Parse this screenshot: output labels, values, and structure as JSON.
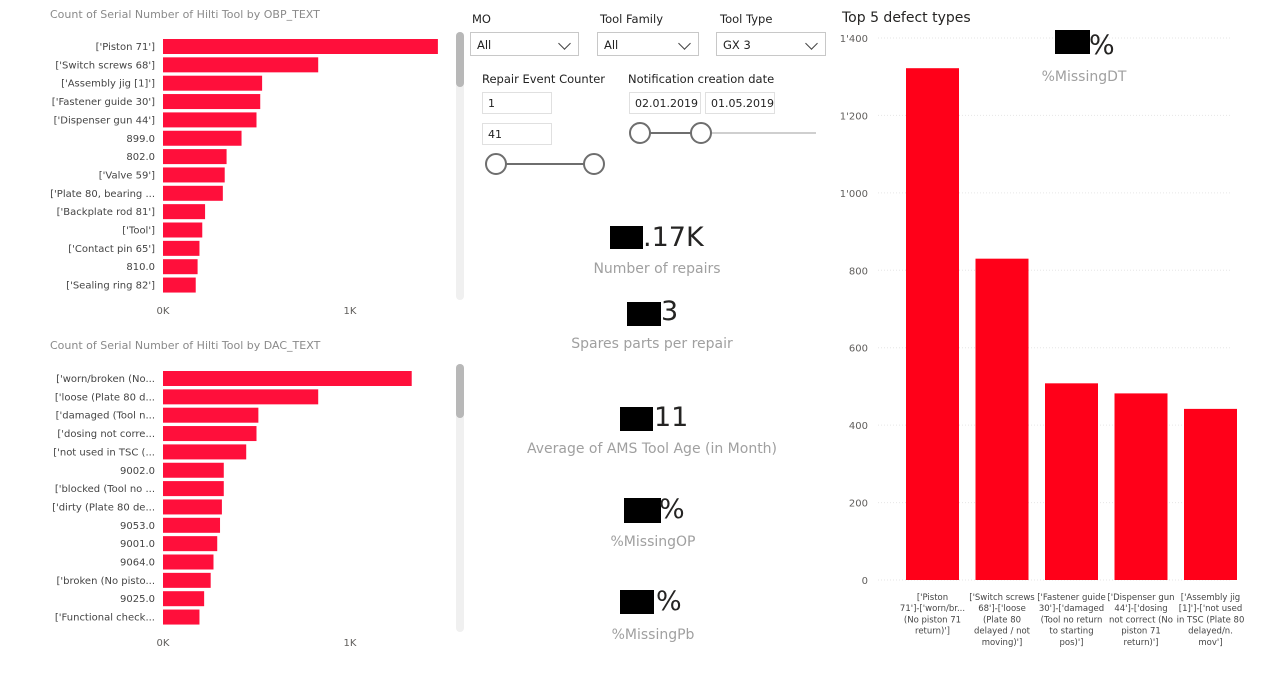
{
  "charts": {
    "obp": {
      "title": "Count of Serial Number of Hilti Tool by OBP_TEXT",
      "tick_labels": [
        "0K",
        "1K"
      ]
    },
    "dac": {
      "title": "Count of Serial Number of Hilti Tool by DAC_TEXT",
      "tick_labels": [
        "0K",
        "1K"
      ]
    },
    "defects": {
      "title": "Top 5 defect types",
      "tick_labels": [
        "0",
        "200",
        "400",
        "600",
        "800",
        "1'000",
        "1'200",
        "1'400"
      ]
    }
  },
  "chart_data": [
    {
      "id": "obp",
      "type": "bar",
      "orientation": "horizontal",
      "title": "Count of Serial Number of Hilti Tool by OBP_TEXT",
      "categories": [
        "['Piston 71']",
        "['Switch screws 68']",
        "['Assembly jig [1]']",
        "['Fastener guide 30']",
        "['Dispenser gun 44']",
        "899.0",
        "802.0",
        "['Valve 59']",
        "['Plate 80, bearing ...",
        "['Backplate rod 81']",
        "['Tool']",
        "['Contact pin 65']",
        "810.0",
        "['Sealing ring 82']"
      ],
      "values": [
        1470,
        830,
        530,
        520,
        500,
        420,
        340,
        330,
        320,
        225,
        210,
        195,
        185,
        175
      ],
      "xlim": [
        0,
        1500
      ]
    },
    {
      "id": "dac",
      "type": "bar",
      "orientation": "horizontal",
      "title": "Count of Serial Number of Hilti Tool by DAC_TEXT",
      "categories": [
        "['worn/broken (No...",
        "['loose (Plate 80 d...",
        "['damaged (Tool n...",
        "['dosing not corre...",
        "['not used in TSC (...",
        "9002.0",
        "['blocked (Tool no ...",
        "['dirty (Plate 80 de...",
        "9053.0",
        "9001.0",
        "9064.0",
        "['broken (No pisto...",
        "9025.0",
        "['Functional check..."
      ],
      "values": [
        1330,
        830,
        510,
        500,
        445,
        325,
        325,
        315,
        305,
        290,
        270,
        255,
        220,
        195
      ],
      "xlim": [
        0,
        1500
      ]
    },
    {
      "id": "defects",
      "type": "bar",
      "title": "Top 5 defect types",
      "categories": [
        "['Piston 71']-['worn/br... (No piston 71 return)']",
        "['Switch screws 68']-['loose (Plate 80 delayed / not moving)']",
        "['Fastener guide 30']-['damaged (Tool no return to starting pos)']",
        "['Dispenser gun 44']-['dosing not correct (No piston 71 return)']",
        "['Assembly jig [1]']-['not used in TSC (Plate 80 delayed/n. mov']"
      ],
      "category_lines": [
        [
          "['Piston",
          "71']-['worn/br...",
          "(No piston 71",
          "return)']"
        ],
        [
          "['Switch screws",
          "68']-['loose",
          "(Plate 80",
          "delayed / not",
          "moving)']"
        ],
        [
          "['Fastener guide",
          "30']-['damaged",
          "(Tool no return",
          "to starting",
          "pos)']"
        ],
        [
          "['Dispenser gun",
          "44']-['dosing",
          "not correct (No",
          "piston 71",
          "return)']"
        ],
        [
          "['Assembly jig",
          "[1]']-['not used",
          "in TSC (Plate 80",
          "delayed/n.",
          "mov']"
        ]
      ],
      "values": [
        1322,
        830,
        508,
        482,
        442
      ],
      "ylim": [
        0,
        1400
      ],
      "color": "#ff0019"
    }
  ],
  "slicers": {
    "mo": {
      "label": "MO",
      "value": "All"
    },
    "tool_family": {
      "label": "Tool Family",
      "value": "All"
    },
    "tool_type": {
      "label": "Tool Type",
      "value": "GX 3"
    },
    "repair_event": {
      "label": "Repair Event Counter",
      "min": "1",
      "max": "41"
    },
    "notification_date": {
      "label": "Notification creation date",
      "start": "02.01.2019",
      "end": "01.05.2019"
    }
  },
  "kpis": {
    "repairs": {
      "value": ".17K",
      "label": "Number of repairs"
    },
    "spares": {
      "value": "3",
      "label": "Spares parts per repair"
    },
    "tool_age": {
      "value": "11",
      "label": "Average of AMS Tool Age (in Month)"
    },
    "missing_op": {
      "value": "%",
      "label": "%MissingOP"
    },
    "missing_pb": {
      "value": "%",
      "label": "%MissingPb"
    },
    "missing_dt": {
      "value": "%",
      "label": "%MissingDT"
    }
  },
  "colors": {
    "bar": "#ff0f3b",
    "bar_defects": "#ff0019",
    "grid": "#e6e6e6"
  }
}
